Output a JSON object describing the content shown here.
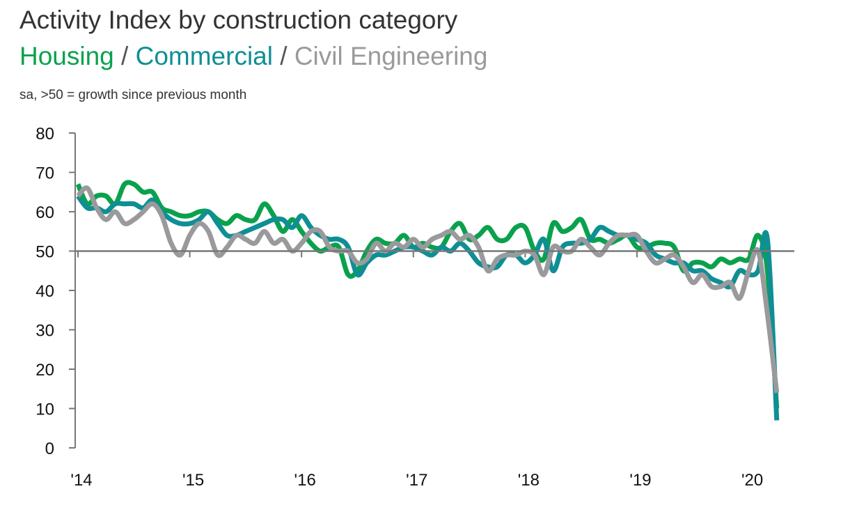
{
  "header": {
    "title": "Activity Index by construction category",
    "series_titles": [
      "Housing",
      "Commercial",
      "Civil Engineering"
    ],
    "separator": "/",
    "note": "sa, >50 = growth since previous month"
  },
  "colors": {
    "housing": "#0aa14d",
    "commercial": "#0f8f94",
    "civil": "#9a9a9c",
    "axis": "#777777"
  },
  "chart_data": {
    "type": "line",
    "title": "Activity Index by construction category",
    "subtitle": "Housing / Commercial / Civil Engineering",
    "note": "sa, >50 = growth since previous month",
    "ylim": [
      0,
      80
    ],
    "yticks": [
      0,
      10,
      20,
      30,
      40,
      50,
      60,
      70,
      80
    ],
    "reference_line": 50,
    "x_start": "2014-01",
    "x_end": "2020-04",
    "xticks": [
      {
        "x": "2014-01",
        "label": "'14"
      },
      {
        "x": "2015-01",
        "label": "'15"
      },
      {
        "x": "2016-01",
        "label": "'16"
      },
      {
        "x": "2017-01",
        "label": "'17"
      },
      {
        "x": "2018-01",
        "label": "'18"
      },
      {
        "x": "2019-01",
        "label": "'19"
      },
      {
        "x": "2020-01",
        "label": "'20"
      }
    ],
    "grid": false,
    "series": [
      {
        "name": "Housing",
        "color": "#0aa14d",
        "x": [
          "2014-01",
          "2014-02",
          "2014-03",
          "2014-04",
          "2014-05",
          "2014-06",
          "2014-07",
          "2014-08",
          "2014-09",
          "2014-10",
          "2014-11",
          "2014-12",
          "2015-01",
          "2015-02",
          "2015-03",
          "2015-04",
          "2015-05",
          "2015-06",
          "2015-07",
          "2015-08",
          "2015-09",
          "2015-10",
          "2015-11",
          "2015-12",
          "2016-01",
          "2016-02",
          "2016-03",
          "2016-04",
          "2016-05",
          "2016-06",
          "2016-07",
          "2016-08",
          "2016-09",
          "2016-10",
          "2016-11",
          "2016-12",
          "2017-01",
          "2017-02",
          "2017-03",
          "2017-04",
          "2017-05",
          "2017-06",
          "2017-07",
          "2017-08",
          "2017-09",
          "2017-10",
          "2017-11",
          "2017-12",
          "2018-01",
          "2018-02",
          "2018-03",
          "2018-04",
          "2018-05",
          "2018-06",
          "2018-07",
          "2018-08",
          "2018-09",
          "2018-10",
          "2018-11",
          "2018-12",
          "2019-01",
          "2019-02",
          "2019-03",
          "2019-04",
          "2019-05",
          "2019-06",
          "2019-07",
          "2019-08",
          "2019-09",
          "2019-10",
          "2019-11",
          "2019-12",
          "2020-01",
          "2020-02",
          "2020-03",
          "2020-04"
        ],
        "values": [
          67,
          62,
          64,
          64,
          62,
          67,
          67,
          65,
          65,
          61,
          60,
          59,
          59,
          60,
          60,
          58,
          57,
          59,
          58,
          58,
          62,
          59,
          55,
          58,
          55,
          52,
          50,
          51,
          51,
          44,
          45,
          50,
          53,
          52,
          52,
          54,
          51,
          52,
          51,
          51,
          55,
          57,
          53,
          54,
          56,
          53,
          53,
          56,
          56,
          50,
          48,
          57,
          55,
          56,
          58,
          53,
          53,
          52,
          53,
          54,
          51,
          51,
          52,
          52,
          51,
          45,
          47,
          47,
          46,
          48,
          47,
          48,
          48,
          54,
          45,
          10
        ]
      },
      {
        "name": "Commercial",
        "color": "#0f8f94",
        "x": [
          "2014-01",
          "2014-02",
          "2014-03",
          "2014-04",
          "2014-05",
          "2014-06",
          "2014-07",
          "2014-08",
          "2014-09",
          "2014-10",
          "2014-11",
          "2014-12",
          "2015-01",
          "2015-02",
          "2015-03",
          "2015-04",
          "2015-05",
          "2015-06",
          "2015-07",
          "2015-08",
          "2015-09",
          "2015-10",
          "2015-11",
          "2015-12",
          "2016-01",
          "2016-02",
          "2016-03",
          "2016-04",
          "2016-05",
          "2016-06",
          "2016-07",
          "2016-08",
          "2016-09",
          "2016-10",
          "2016-11",
          "2016-12",
          "2017-01",
          "2017-02",
          "2017-03",
          "2017-04",
          "2017-05",
          "2017-06",
          "2017-07",
          "2017-08",
          "2017-09",
          "2017-10",
          "2017-11",
          "2017-12",
          "2018-01",
          "2018-02",
          "2018-03",
          "2018-04",
          "2018-05",
          "2018-06",
          "2018-07",
          "2018-08",
          "2018-09",
          "2018-10",
          "2018-11",
          "2018-12",
          "2019-01",
          "2019-02",
          "2019-03",
          "2019-04",
          "2019-05",
          "2019-06",
          "2019-07",
          "2019-08",
          "2019-09",
          "2019-10",
          "2019-11",
          "2019-12",
          "2020-01",
          "2020-02",
          "2020-03",
          "2020-04"
        ],
        "values": [
          64,
          61,
          61,
          60,
          62,
          62,
          62,
          61,
          63,
          60,
          58,
          57,
          57,
          58,
          60,
          57,
          54,
          54,
          55,
          56,
          57,
          58,
          58,
          56,
          59,
          56,
          54,
          53,
          53,
          51,
          44,
          47,
          49,
          49,
          50,
          51,
          51,
          50,
          49,
          51,
          50,
          52,
          50,
          47,
          46,
          46,
          49,
          49,
          47,
          49,
          53,
          45,
          51,
          52,
          52,
          53,
          56,
          55,
          54,
          54,
          53,
          52,
          49,
          48,
          47,
          47,
          45,
          45,
          43,
          42,
          41,
          45,
          44,
          45,
          53,
          7
        ]
      },
      {
        "name": "Civil Engineering",
        "color": "#9a9a9c",
        "x": [
          "2014-01",
          "2014-02",
          "2014-03",
          "2014-04",
          "2014-05",
          "2014-06",
          "2014-07",
          "2014-08",
          "2014-09",
          "2014-10",
          "2014-11",
          "2014-12",
          "2015-01",
          "2015-02",
          "2015-03",
          "2015-04",
          "2015-05",
          "2015-06",
          "2015-07",
          "2015-08",
          "2015-09",
          "2015-10",
          "2015-11",
          "2015-12",
          "2016-01",
          "2016-02",
          "2016-03",
          "2016-04",
          "2016-05",
          "2016-06",
          "2016-07",
          "2016-08",
          "2016-09",
          "2016-10",
          "2016-11",
          "2016-12",
          "2017-01",
          "2017-02",
          "2017-03",
          "2017-04",
          "2017-05",
          "2017-06",
          "2017-07",
          "2017-08",
          "2017-09",
          "2017-10",
          "2017-11",
          "2017-12",
          "2018-01",
          "2018-02",
          "2018-03",
          "2018-04",
          "2018-05",
          "2018-06",
          "2018-07",
          "2018-08",
          "2018-09",
          "2018-10",
          "2018-11",
          "2018-12",
          "2019-01",
          "2019-02",
          "2019-03",
          "2019-04",
          "2019-05",
          "2019-06",
          "2019-07",
          "2019-08",
          "2019-09",
          "2019-10",
          "2019-11",
          "2019-12",
          "2020-01",
          "2020-02",
          "2020-03",
          "2020-04"
        ],
        "values": [
          64,
          66,
          61,
          58,
          60,
          57,
          58,
          60,
          62,
          59,
          52,
          49,
          54,
          57,
          55,
          49,
          51,
          54,
          53,
          52,
          55,
          52,
          53,
          50,
          52,
          55,
          55,
          51,
          50,
          50,
          47,
          48,
          52,
          50,
          52,
          51,
          53,
          51,
          53,
          54,
          55,
          53,
          54,
          51,
          45,
          48,
          49,
          49,
          50,
          49,
          44,
          51,
          50,
          50,
          53,
          51,
          49,
          52,
          54,
          54,
          54,
          50,
          47,
          48,
          49,
          46,
          42,
          44,
          41,
          41,
          42,
          38,
          45,
          50,
          34,
          14
        ]
      }
    ]
  }
}
